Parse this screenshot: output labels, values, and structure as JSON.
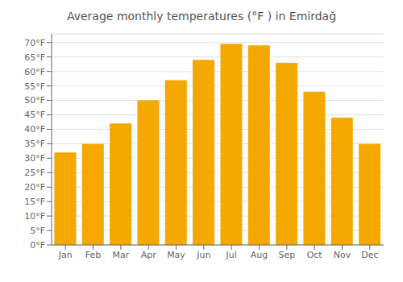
{
  "chart_data": {
    "type": "bar",
    "title": "Average monthly temperatures (°F ) in Emirdağ",
    "categories": [
      "Jan",
      "Feb",
      "Mar",
      "Apr",
      "May",
      "Jun",
      "Jul",
      "Aug",
      "Sep",
      "Oct",
      "Nov",
      "Dec"
    ],
    "values": [
      32,
      35,
      42,
      50,
      57,
      64,
      69.5,
      69,
      63,
      53,
      44,
      35
    ],
    "color": "#F5A800",
    "ylim": [
      0,
      73
    ],
    "yticks": [
      {
        "value": 0,
        "label": "0°F"
      },
      {
        "value": 5,
        "label": "5°F"
      },
      {
        "value": 10,
        "label": "10°F"
      },
      {
        "value": 15,
        "label": "15°F"
      },
      {
        "value": 20,
        "label": "20°F"
      },
      {
        "value": 25,
        "label": "25°F"
      },
      {
        "value": 30,
        "label": "30°F"
      },
      {
        "value": 35,
        "label": "35°F"
      },
      {
        "value": 40,
        "label": "40°F"
      },
      {
        "value": 45,
        "label": "45°F"
      },
      {
        "value": 50,
        "label": "50°F"
      },
      {
        "value": 55,
        "label": "55°F"
      },
      {
        "value": 60,
        "label": "60°F"
      },
      {
        "value": 65,
        "label": "65°F"
      },
      {
        "value": 70,
        "label": "70°F"
      }
    ],
    "grid": true
  }
}
